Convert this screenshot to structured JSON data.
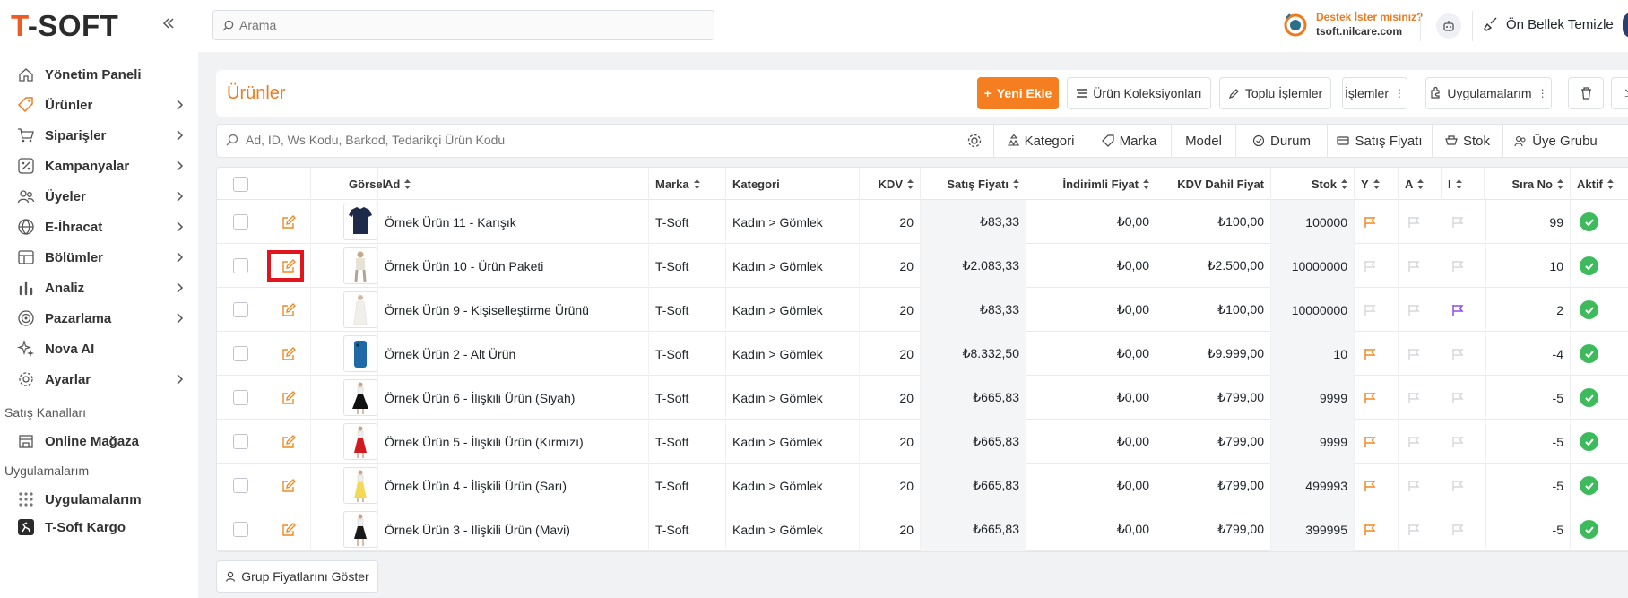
{
  "app": {
    "logo_prefix": "T",
    "logo_rest": "-SOFT"
  },
  "header": {
    "search_placeholder": "Arama",
    "support_title": "Destek İster misiniz?",
    "support_domain": "tsoft.nilcare.com",
    "cache_label": "Ön Bellek Temizle"
  },
  "sidebar": {
    "items": [
      {
        "label": "Yönetim Paneli",
        "icon": "home-icon"
      },
      {
        "label": "Ürünler",
        "icon": "tag-icon"
      },
      {
        "label": "Siparişler",
        "icon": "cart-icon"
      },
      {
        "label": "Kampanyalar",
        "icon": "discount-icon"
      },
      {
        "label": "Üyeler",
        "icon": "users-icon"
      },
      {
        "label": "E-İhracat",
        "icon": "globe-icon"
      },
      {
        "label": "Bölümler",
        "icon": "layout-icon"
      },
      {
        "label": "Analiz",
        "icon": "chart-icon"
      },
      {
        "label": "Pazarlama",
        "icon": "target-icon"
      },
      {
        "label": "Nova AI",
        "icon": "sparkle-icon"
      },
      {
        "label": "Ayarlar",
        "icon": "gear-icon"
      }
    ],
    "section_sales": "Satış Kanalları",
    "online_store": "Online Mağaza",
    "section_apps": "Uygulamalarım",
    "apps": "Uygulamalarım",
    "kargo": "T-Soft Kargo"
  },
  "page": {
    "title": "Ürünler",
    "new_button": "Yeni Ekle",
    "collections_button": "Ürün Koleksiyonları",
    "bulk_button": "Toplu İşlemler",
    "actions_button": "İşlemler",
    "apps_button": "Uygulamalarım"
  },
  "filter": {
    "placeholder": "Ad, ID, Ws Kodu, Barkod, Tedarikçi Ürün Kodu",
    "chips": [
      "Kategori",
      "Marka",
      "Model",
      "Durum",
      "Satış Fiyatı",
      "Stok",
      "Üye Grubu"
    ]
  },
  "table": {
    "headers": {
      "image": "Görsel",
      "name": "Ad",
      "brand": "Marka",
      "category": "Kategori",
      "vat": "KDV",
      "price": "Satış Fiyatı",
      "discount": "İndirimli Fiyat",
      "vat_price": "KDV Dahil Fiyat",
      "stock": "Stok",
      "y": "Y",
      "a": "A",
      "i": "I",
      "order": "Sıra No",
      "active": "Aktif"
    },
    "rows": [
      {
        "name": "Örnek Ürün 11 - Karışık",
        "brand": "T-Soft",
        "category": "Kadın > Gömlek",
        "vat": "20",
        "price": "₺83,33",
        "discount": "₺0,00",
        "vat_price": "₺100,00",
        "stock": "100000",
        "y": "orange",
        "a": "gray",
        "i": "gray",
        "order": "99",
        "thumb": "tshirt"
      },
      {
        "name": "Örnek Ürün 10 - Ürün Paketi",
        "brand": "T-Soft",
        "category": "Kadın > Gömlek",
        "vat": "20",
        "price": "₺2.083,33",
        "discount": "₺0,00",
        "vat_price": "₺2.500,00",
        "stock": "10000000",
        "y": "gray",
        "a": "gray",
        "i": "gray",
        "order": "10",
        "thumb": "person"
      },
      {
        "name": "Örnek Ürün 9 - Kişiselleştirme Ürünü",
        "brand": "T-Soft",
        "category": "Kadın > Gömlek",
        "vat": "20",
        "price": "₺83,33",
        "discount": "₺0,00",
        "vat_price": "₺100,00",
        "stock": "10000000",
        "y": "gray",
        "a": "gray",
        "i": "purple",
        "order": "2",
        "thumb": "dress"
      },
      {
        "name": "Örnek Ürün 2 - Alt Ürün",
        "brand": "T-Soft",
        "category": "Kadın > Gömlek",
        "vat": "20",
        "price": "₺8.332,50",
        "discount": "₺0,00",
        "vat_price": "₺9.999,00",
        "stock": "10",
        "y": "orange",
        "a": "gray",
        "i": "gray",
        "order": "-4",
        "thumb": "phone"
      },
      {
        "name": "Örnek Ürün 6 - İlişkili Ürün (Siyah)",
        "brand": "T-Soft",
        "category": "Kadın > Gömlek",
        "vat": "20",
        "price": "₺665,83",
        "discount": "₺0,00",
        "vat_price": "₺799,00",
        "stock": "9999",
        "y": "orange",
        "a": "gray",
        "i": "gray",
        "order": "-5",
        "thumb": "skirt-black"
      },
      {
        "name": "Örnek Ürün 5 - İlişkili Ürün (Kırmızı)",
        "brand": "T-Soft",
        "category": "Kadın > Gömlek",
        "vat": "20",
        "price": "₺665,83",
        "discount": "₺0,00",
        "vat_price": "₺799,00",
        "stock": "9999",
        "y": "orange",
        "a": "gray",
        "i": "gray",
        "order": "-5",
        "thumb": "skirt-red"
      },
      {
        "name": "Örnek Ürün 4 - İlişkili Ürün (Sarı)",
        "brand": "T-Soft",
        "category": "Kadın > Gömlek",
        "vat": "20",
        "price": "₺665,83",
        "discount": "₺0,00",
        "vat_price": "₺799,00",
        "stock": "499993",
        "y": "orange",
        "a": "gray",
        "i": "gray",
        "order": "-5",
        "thumb": "skirt-yellow"
      },
      {
        "name": "Örnek Ürün 3 - İlişkili Ürün (Mavi)",
        "brand": "T-Soft",
        "category": "Kadın > Gömlek",
        "vat": "20",
        "price": "₺665,83",
        "discount": "₺0,00",
        "vat_price": "₺799,00",
        "stock": "399995",
        "y": "orange",
        "a": "gray",
        "i": "gray",
        "order": "-5",
        "thumb": "skirt-navy"
      }
    ]
  },
  "footer": {
    "group_prices_button": "Grup Fiyatlarını Göster"
  },
  "colors": {
    "accent": "#f57e20",
    "title": "#ee7a1e",
    "active": "#3dbb5c",
    "highlight": "#e2141c",
    "flag_orange": "#f08a24",
    "flag_gray": "#d5d8dc",
    "flag_purple": "#8c4fe8"
  }
}
